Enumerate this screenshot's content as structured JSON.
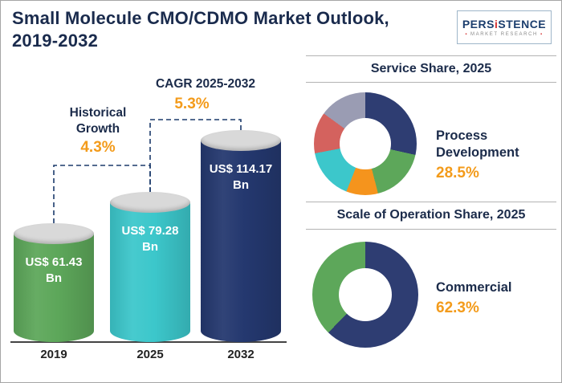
{
  "header": {
    "title_line1": "Small Molecule CMO/CDMO Market Outlook,",
    "title_line2": "2019-2032",
    "logo": {
      "brand_pre": "PERS",
      "brand_i": "i",
      "brand_post": "STENCE",
      "subtitle": "MARKET RESEARCH"
    }
  },
  "colors": {
    "navy": "#1b2b4a",
    "accent_orange": "#f39b1b",
    "bar_green": "#5da75a",
    "bar_teal": "#3cc7cb",
    "bar_blue": "#24386f"
  },
  "chart_data": [
    {
      "type": "bar",
      "categories": [
        "2019",
        "2025",
        "2032"
      ],
      "values": [
        61.43,
        79.28,
        114.17
      ],
      "display_labels": [
        "US$ 61.43\nBn",
        "US$ 79.28\nBn",
        "US$ 114.17\nBn"
      ],
      "colors": [
        "#5da75a",
        "#3cc7cb",
        "#24386f"
      ],
      "unit": "US$ Bn",
      "annotations": [
        {
          "label": "Historical Growth",
          "value": "4.3%"
        },
        {
          "label": "CAGR 2025-2032",
          "value": "5.3%"
        }
      ]
    },
    {
      "type": "pie",
      "donut": true,
      "title": "Service Share, 2025",
      "callout": {
        "label": "Process Development",
        "value": "28.5%"
      },
      "slices": [
        {
          "name": "Process Development",
          "value": 28.5,
          "color": "#2e3d72"
        },
        {
          "name": "",
          "value": 17.5,
          "color": "#5da75a"
        },
        {
          "name": "",
          "value": 10.0,
          "color": "#f5941d"
        },
        {
          "name": "",
          "value": 16.0,
          "color": "#3cc7cb"
        },
        {
          "name": "",
          "value": 13.0,
          "color": "#d4625e"
        },
        {
          "name": "",
          "value": 15.0,
          "color": "#9a9cb3"
        }
      ]
    },
    {
      "type": "pie",
      "donut": true,
      "title": "Scale of Operation Share, 2025",
      "callout": {
        "label": "Commercial",
        "value": "62.3%"
      },
      "slices": [
        {
          "name": "Commercial",
          "value": 62.3,
          "color": "#2e3d72"
        },
        {
          "name": "",
          "value": 37.7,
          "color": "#5da75a"
        }
      ]
    }
  ]
}
